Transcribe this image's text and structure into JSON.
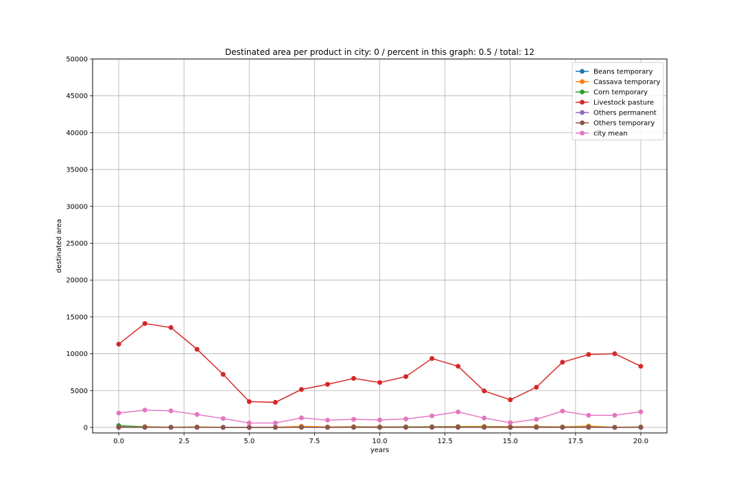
{
  "chart_data": {
    "type": "line",
    "title": "Destinated area per product in city: 0 / percent in this graph: 0.5 / total: 12",
    "xlabel": "years",
    "ylabel": "destinated area",
    "xlim": [
      -1,
      21
    ],
    "ylim": [
      -750,
      50000
    ],
    "xticks": [
      0.0,
      2.5,
      5.0,
      7.5,
      10.0,
      12.5,
      15.0,
      17.5,
      20.0
    ],
    "xtick_labels": [
      "0.0",
      "2.5",
      "5.0",
      "7.5",
      "10.0",
      "12.5",
      "15.0",
      "17.5",
      "20.0"
    ],
    "yticks": [
      0,
      5000,
      10000,
      15000,
      20000,
      25000,
      30000,
      35000,
      40000,
      45000,
      50000
    ],
    "ytick_labels": [
      "0",
      "5000",
      "10000",
      "15000",
      "20000",
      "25000",
      "30000",
      "35000",
      "40000",
      "45000",
      "50000"
    ],
    "grid": true,
    "legend_position": "top-right",
    "x": [
      0,
      1,
      2,
      3,
      4,
      5,
      6,
      7,
      8,
      9,
      10,
      11,
      12,
      13,
      14,
      15,
      16,
      17,
      18,
      19,
      20
    ],
    "series": [
      {
        "name": "Beans temporary",
        "color": "#1f77b4",
        "values": [
          50,
          40,
          20,
          30,
          10,
          10,
          10,
          30,
          20,
          40,
          30,
          40,
          40,
          50,
          40,
          20,
          30,
          20,
          30,
          10,
          20
        ]
      },
      {
        "name": "Cassava temporary",
        "color": "#ff7f0e",
        "values": [
          200,
          100,
          30,
          60,
          20,
          20,
          20,
          150,
          60,
          100,
          80,
          80,
          100,
          120,
          130,
          100,
          110,
          80,
          180,
          20,
          60
        ]
      },
      {
        "name": "Corn temporary",
        "color": "#2ca02c",
        "values": [
          250,
          50,
          20,
          40,
          10,
          10,
          10,
          30,
          20,
          50,
          40,
          60,
          60,
          70,
          60,
          40,
          50,
          30,
          50,
          10,
          40
        ]
      },
      {
        "name": "Livestock pasture",
        "color": "#d62728",
        "values": [
          11300,
          14100,
          13550,
          10600,
          7200,
          3500,
          3400,
          5150,
          5850,
          6650,
          6100,
          6900,
          9350,
          8300,
          4950,
          3750,
          5450,
          8850,
          9900,
          10000,
          8300
        ]
      },
      {
        "name": "Others permanent",
        "color": "#9467bd",
        "values": [
          10,
          10,
          5,
          10,
          5,
          5,
          5,
          10,
          5,
          10,
          5,
          10,
          10,
          10,
          10,
          5,
          10,
          5,
          10,
          5,
          10
        ]
      },
      {
        "name": "Others temporary",
        "color": "#8c564b",
        "values": [
          20,
          20,
          10,
          20,
          10,
          10,
          10,
          20,
          10,
          20,
          10,
          20,
          20,
          20,
          20,
          10,
          20,
          10,
          20,
          10,
          20
        ]
      },
      {
        "name": "city mean",
        "color": "#e377c2",
        "values": [
          1950,
          2350,
          2250,
          1750,
          1200,
          600,
          600,
          1300,
          980,
          1100,
          1020,
          1150,
          1580,
          2100,
          1270,
          650,
          1100,
          2220,
          1650,
          1650,
          2120
        ]
      }
    ]
  }
}
